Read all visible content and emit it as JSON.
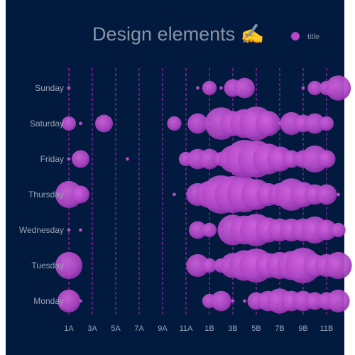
{
  "chart_data": {
    "type": "scatter",
    "title": "Design elements ✍️",
    "legend": [
      "title"
    ],
    "legend_position": "top-right",
    "days": [
      "Monday",
      "Tuesday",
      "Wednesday",
      "Thursday",
      "Friday",
      "Saturday",
      "Sunday"
    ],
    "hours": [
      "1A",
      "2A",
      "3A",
      "4A",
      "5A",
      "6A",
      "7A",
      "8A",
      "9A",
      "10A",
      "11A",
      "12A",
      "1B",
      "2B",
      "3B",
      "4B",
      "5B",
      "6B",
      "7B",
      "8B",
      "9B",
      "10B",
      "11B",
      "12B"
    ],
    "hour_tick_labels": [
      "1A",
      "3A",
      "5A",
      "7A",
      "9A",
      "11A",
      "1B",
      "3B",
      "5B",
      "7B",
      "9B",
      "11B"
    ],
    "gridlines": true,
    "colors": {
      "background": "#011a3e",
      "bubble": "#b348c8",
      "grid": "#d62bd6"
    },
    "points": [
      [
        0,
        0,
        5
      ],
      [
        0,
        1,
        1
      ],
      [
        0,
        12,
        2
      ],
      [
        0,
        13,
        4
      ],
      [
        0,
        14,
        1
      ],
      [
        0,
        15,
        1
      ],
      [
        0,
        16,
        3
      ],
      [
        0,
        17,
        4
      ],
      [
        0,
        18,
        6
      ],
      [
        0,
        19,
        4
      ],
      [
        0,
        20,
        4
      ],
      [
        0,
        21,
        3
      ],
      [
        0,
        22,
        3
      ],
      [
        0,
        23,
        5
      ],
      [
        1,
        0,
        7
      ],
      [
        1,
        11,
        5
      ],
      [
        1,
        12,
        2
      ],
      [
        1,
        13,
        2
      ],
      [
        1,
        14,
        6
      ],
      [
        1,
        15,
        9
      ],
      [
        1,
        16,
        11
      ],
      [
        1,
        17,
        6
      ],
      [
        1,
        18,
        7
      ],
      [
        1,
        19,
        8
      ],
      [
        1,
        20,
        12
      ],
      [
        1,
        21,
        5
      ],
      [
        1,
        22,
        5
      ],
      [
        1,
        23,
        7
      ],
      [
        2,
        0,
        1
      ],
      [
        2,
        1,
        1
      ],
      [
        2,
        11,
        3
      ],
      [
        2,
        12,
        2
      ],
      [
        2,
        13,
        1
      ],
      [
        2,
        14,
        9
      ],
      [
        2,
        15,
        8
      ],
      [
        2,
        16,
        10
      ],
      [
        2,
        17,
        6
      ],
      [
        2,
        18,
        5
      ],
      [
        2,
        19,
        5
      ],
      [
        2,
        20,
        5
      ],
      [
        2,
        21,
        7
      ],
      [
        2,
        22,
        4
      ],
      [
        2,
        23,
        2
      ],
      [
        3,
        0,
        7
      ],
      [
        3,
        1,
        3
      ],
      [
        3,
        9,
        1
      ],
      [
        3,
        11,
        5
      ],
      [
        3,
        12,
        7
      ],
      [
        3,
        13,
        14
      ],
      [
        3,
        14,
        13
      ],
      [
        3,
        15,
        12
      ],
      [
        3,
        16,
        9
      ],
      [
        3,
        17,
        5
      ],
      [
        3,
        18,
        5
      ],
      [
        3,
        19,
        10
      ],
      [
        3,
        20,
        6
      ],
      [
        3,
        21,
        4
      ],
      [
        3,
        22,
        4
      ],
      [
        3,
        23,
        1
      ],
      [
        4,
        0,
        1
      ],
      [
        4,
        1,
        3
      ],
      [
        4,
        5,
        1
      ],
      [
        4,
        10,
        2
      ],
      [
        4,
        11,
        4
      ],
      [
        4,
        12,
        4
      ],
      [
        4,
        13,
        2
      ],
      [
        4,
        14,
        7
      ],
      [
        4,
        15,
        14
      ],
      [
        4,
        16,
        13
      ],
      [
        4,
        17,
        9
      ],
      [
        4,
        18,
        6
      ],
      [
        4,
        19,
        3
      ],
      [
        4,
        20,
        3
      ],
      [
        4,
        21,
        7
      ],
      [
        4,
        22,
        3
      ],
      [
        5,
        0,
        2
      ],
      [
        5,
        1,
        1
      ],
      [
        5,
        3,
        3
      ],
      [
        5,
        9,
        2
      ],
      [
        5,
        11,
        4
      ],
      [
        5,
        12,
        1
      ],
      [
        5,
        13,
        10
      ],
      [
        5,
        14,
        6
      ],
      [
        5,
        15,
        8
      ],
      [
        5,
        16,
        11
      ],
      [
        5,
        17,
        6
      ],
      [
        5,
        18,
        1
      ],
      [
        5,
        19,
        5
      ],
      [
        5,
        20,
        3
      ],
      [
        5,
        21,
        4
      ],
      [
        5,
        22,
        2
      ],
      [
        6,
        0,
        1
      ],
      [
        6,
        11,
        1
      ],
      [
        6,
        12,
        2
      ],
      [
        6,
        13,
        1
      ],
      [
        6,
        14,
        3
      ],
      [
        6,
        15,
        4
      ],
      [
        6,
        20,
        1
      ],
      [
        6,
        21,
        2
      ],
      [
        6,
        22,
        2
      ],
      [
        6,
        23,
        6
      ]
    ]
  }
}
